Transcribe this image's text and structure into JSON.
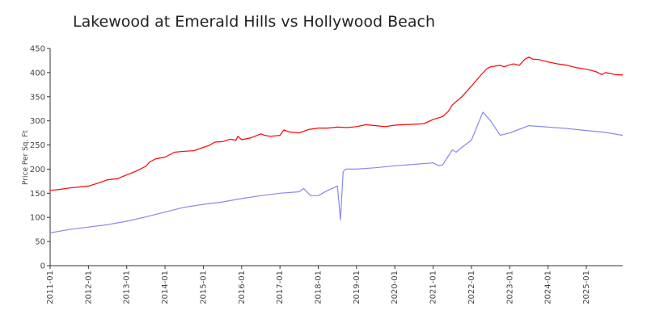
{
  "chart_data": {
    "type": "line",
    "title": "Lakewood at Emerald Hills vs Hollywood Beach",
    "xlabel": "",
    "ylabel": "Price Per Sq. Ft",
    "ylim": [
      0,
      450
    ],
    "xlim": [
      2011.0,
      2025.95
    ],
    "yticks": [
      0,
      50,
      100,
      150,
      200,
      250,
      300,
      350,
      400,
      450
    ],
    "xticks": [
      "2011-01",
      "2012-01",
      "2013-01",
      "2014-01",
      "2015-01",
      "2016-01",
      "2017-01",
      "2018-01",
      "2019-01",
      "2020-01",
      "2021-01",
      "2022-01",
      "2023-01",
      "2024-01",
      "2025-01"
    ],
    "series": [
      {
        "name": "Lakewood at Emerald Hills",
        "color": "#ff0000",
        "x": [
          2011.0,
          2011.25,
          2011.5,
          2011.75,
          2012.0,
          2012.25,
          2012.5,
          2012.75,
          2013.0,
          2013.25,
          2013.5,
          2013.6,
          2013.75,
          2014.0,
          2014.25,
          2014.5,
          2014.75,
          2015.0,
          2015.15,
          2015.3,
          2015.5,
          2015.7,
          2015.85,
          2015.9,
          2016.0,
          2016.25,
          2016.5,
          2016.6,
          2016.75,
          2017.0,
          2017.1,
          2017.25,
          2017.5,
          2017.75,
          2018.0,
          2018.25,
          2018.5,
          2018.75,
          2019.0,
          2019.25,
          2019.5,
          2019.75,
          2020.0,
          2020.25,
          2020.5,
          2020.75,
          2021.0,
          2021.25,
          2021.4,
          2021.5,
          2021.75,
          2022.0,
          2022.25,
          2022.4,
          2022.5,
          2022.75,
          2022.85,
          2023.0,
          2023.1,
          2023.25,
          2023.4,
          2023.5,
          2023.6,
          2023.75,
          2024.0,
          2024.25,
          2024.5,
          2024.75,
          2025.0,
          2025.25,
          2025.4,
          2025.5,
          2025.75,
          2025.95
        ],
        "values": [
          156,
          158,
          161,
          163,
          165,
          171,
          178,
          180,
          188,
          196,
          206,
          215,
          221,
          225,
          235,
          237,
          238,
          245,
          249,
          256,
          257,
          262,
          260,
          268,
          261,
          265,
          273,
          270,
          268,
          270,
          281,
          277,
          275,
          282,
          285,
          285,
          287,
          286,
          288,
          292,
          290,
          288,
          291,
          292,
          293,
          294,
          303,
          309,
          320,
          333,
          350,
          372,
          395,
          408,
          412,
          415,
          412,
          416,
          418,
          415,
          428,
          432,
          428,
          427,
          422,
          418,
          415,
          410,
          407,
          402,
          396,
          400,
          396,
          395
        ]
      },
      {
        "name": "Hollywood Beach",
        "color": "#8888ee",
        "x": [
          2011.0,
          2011.5,
          2012.0,
          2012.5,
          2013.0,
          2013.5,
          2014.0,
          2014.5,
          2015.0,
          2015.5,
          2016.0,
          2016.5,
          2017.0,
          2017.5,
          2017.62,
          2017.8,
          2018.0,
          2018.25,
          2018.5,
          2018.58,
          2018.65,
          2018.72,
          2019.0,
          2019.5,
          2020.0,
          2020.5,
          2021.0,
          2021.15,
          2021.25,
          2021.5,
          2021.6,
          2021.75,
          2022.0,
          2022.3,
          2022.5,
          2022.75,
          2023.0,
          2023.5,
          2024.0,
          2024.5,
          2025.0,
          2025.5,
          2025.95
        ],
        "values": [
          68,
          75,
          80,
          85,
          92,
          101,
          111,
          121,
          127,
          132,
          139,
          145,
          150,
          153,
          160,
          145,
          145,
          156,
          165,
          95,
          195,
          200,
          200,
          203,
          207,
          210,
          213,
          207,
          209,
          240,
          235,
          245,
          260,
          318,
          300,
          270,
          275,
          290,
          287,
          284,
          280,
          276,
          270
        ]
      }
    ]
  }
}
